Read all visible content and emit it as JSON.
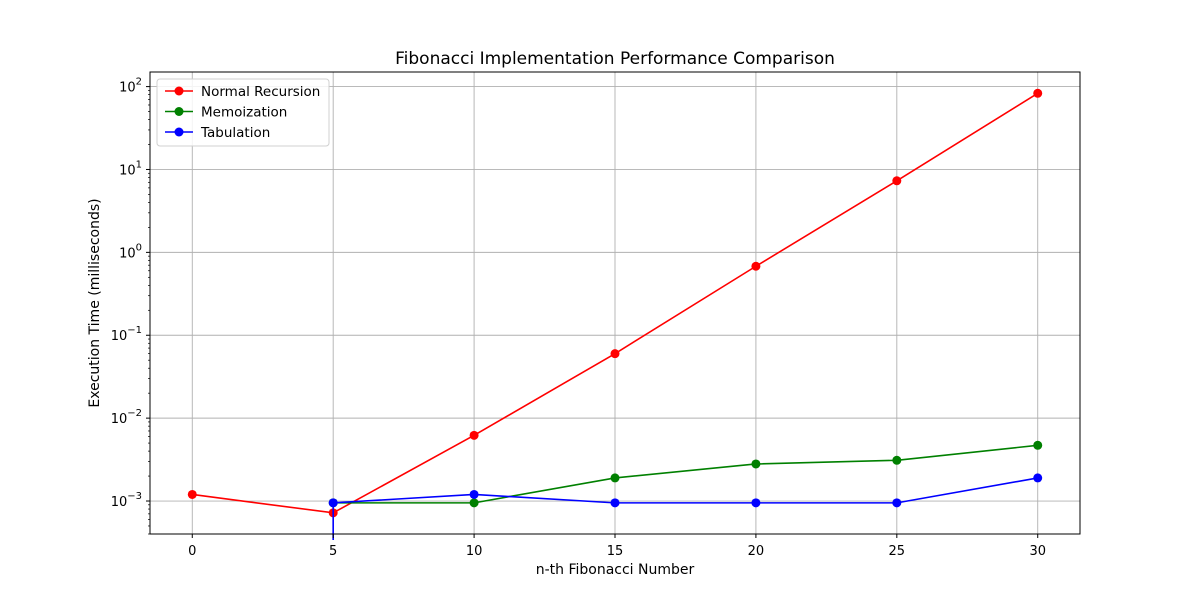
{
  "chart_data": {
    "type": "line",
    "title": "Fibonacci Implementation Performance Comparison",
    "xlabel": "n-th Fibonacci Number",
    "ylabel": "Execution Time (milliseconds)",
    "yscale": "log",
    "xlim": [
      -1.5,
      31.5
    ],
    "ylim": [
      0.0004,
      150
    ],
    "xticks": [
      0,
      5,
      10,
      15,
      20,
      25,
      30
    ],
    "yticks": [
      {
        "value": 0.001,
        "base": "10",
        "exp": "−3"
      },
      {
        "value": 0.01,
        "base": "10",
        "exp": "−2"
      },
      {
        "value": 0.1,
        "base": "10",
        "exp": "−1"
      },
      {
        "value": 1,
        "base": "10",
        "exp": "0"
      },
      {
        "value": 10,
        "base": "10",
        "exp": "1"
      },
      {
        "value": 100,
        "base": "10",
        "exp": "2"
      }
    ],
    "grid": true,
    "legend_position": "top-left",
    "series": [
      {
        "name": "Normal Recursion",
        "color": "#ff0000",
        "x": [
          0,
          5,
          10,
          15,
          20,
          25,
          30
        ],
        "y": [
          0.0012,
          0.00072,
          0.0062,
          0.06,
          0.68,
          7.3,
          83
        ]
      },
      {
        "name": "Memoization",
        "color": "#008000",
        "x": [
          5,
          10,
          15,
          20,
          25,
          30
        ],
        "y": [
          0.00095,
          0.00095,
          0.0019,
          0.0028,
          0.0031,
          0.0047
        ]
      },
      {
        "name": "Tabulation",
        "color": "#0000ff",
        "x": [
          5,
          5,
          10,
          15,
          20,
          25,
          30
        ],
        "y": [
          0,
          0.00095,
          0.0012,
          0.00095,
          0.00095,
          0.00095,
          0.0019
        ]
      }
    ]
  }
}
